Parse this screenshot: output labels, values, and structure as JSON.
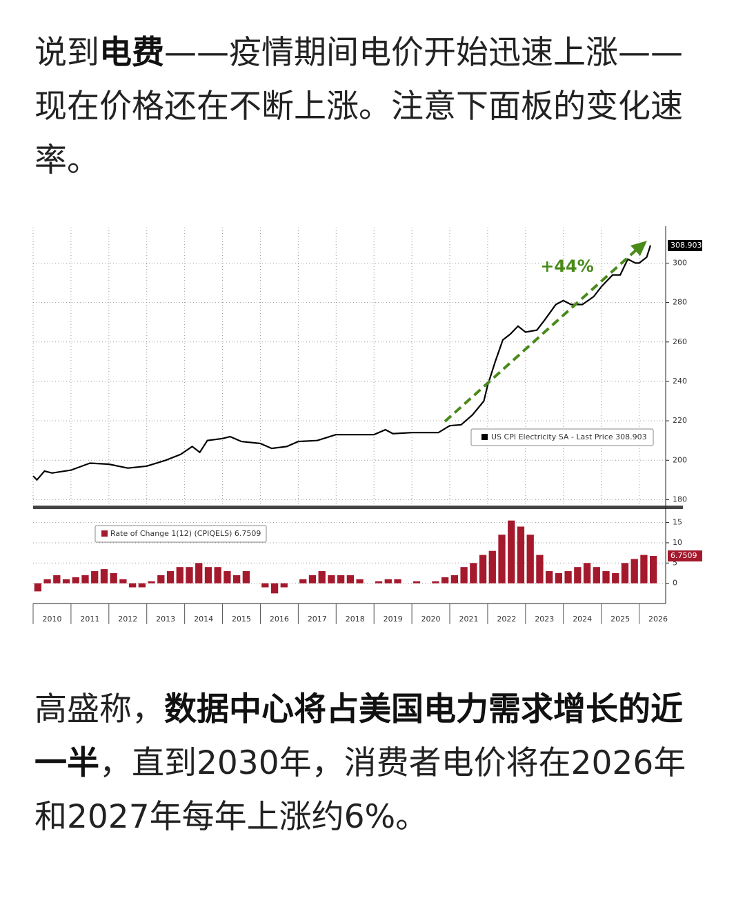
{
  "paragraphs": [
    {
      "runs": [
        {
          "text": "说到"
        },
        {
          "text": "电费",
          "bold": true
        },
        {
          "text": "——疫情期间电价开始迅速上涨——现在价格还在不断上涨。注意下面板的变化速率。"
        }
      ]
    },
    {
      "runs": [
        {
          "text": "高盛称，"
        },
        {
          "text": "数据中心将占美国电力需求增长的近一半",
          "bold": true
        },
        {
          "text": "，直到2030年，消费者电价将在2026年和2027年每年上涨约6%。"
        }
      ]
    }
  ],
  "chart_data": [
    {
      "type": "line",
      "annotation": "+44%",
      "last_value": 308.903,
      "x": [
        2010.0,
        2010.1,
        2010.3,
        2010.5,
        2011.0,
        2011.5,
        2012.0,
        2012.5,
        2013.0,
        2013.5,
        2013.9,
        2014.2,
        2014.4,
        2014.6,
        2015.0,
        2015.2,
        2015.5,
        2016.0,
        2016.3,
        2016.7,
        2017.0,
        2017.5,
        2018.0,
        2018.5,
        2019.0,
        2019.3,
        2019.5,
        2020.0,
        2020.5,
        2020.7,
        2021.0,
        2021.3,
        2021.6,
        2021.9,
        2022.0,
        2022.2,
        2022.4,
        2022.6,
        2022.8,
        2023.0,
        2023.3,
        2023.5,
        2023.8,
        2024.0,
        2024.2,
        2024.5,
        2024.8,
        2025.0,
        2025.3,
        2025.5,
        2025.7,
        2025.9,
        2026.0,
        2026.2,
        2026.3
      ],
      "series": [
        {
          "name": "US CPI Electricity SA - Last Price 308.903",
          "color": "#000000",
          "values": [
            192,
            190,
            194.5,
            193.5,
            195,
            198.5,
            198,
            196,
            197,
            200,
            203,
            207,
            204,
            210,
            211,
            212,
            209.5,
            208.5,
            206,
            207,
            209.5,
            210,
            213,
            213,
            213,
            215.5,
            213.5,
            214,
            214,
            214,
            217.5,
            218,
            223,
            230,
            238,
            250,
            261,
            264,
            268,
            265,
            266,
            271,
            279,
            281,
            279,
            279,
            283,
            288,
            294,
            294,
            302,
            300,
            300,
            303,
            309
          ]
        }
      ],
      "xlim": [
        2010,
        2026.7
      ],
      "xticks": [
        2010,
        2011,
        2012,
        2013,
        2014,
        2015,
        2016,
        2017,
        2018,
        2019,
        2020,
        2021,
        2022,
        2023,
        2024,
        2025,
        2026
      ],
      "ylim": [
        177,
        318
      ],
      "yticks": [
        180,
        200,
        220,
        240,
        260,
        280,
        300
      ],
      "grid": true
    },
    {
      "type": "bar",
      "last_value": 6.7509,
      "x": [
        2010.125,
        2010.375,
        2010.625,
        2010.875,
        2011.125,
        2011.375,
        2011.625,
        2011.875,
        2012.125,
        2012.375,
        2012.625,
        2012.875,
        2013.125,
        2013.375,
        2013.625,
        2013.875,
        2014.125,
        2014.375,
        2014.625,
        2014.875,
        2015.125,
        2015.375,
        2015.625,
        2015.875,
        2016.125,
        2016.375,
        2016.625,
        2016.875,
        2017.125,
        2017.375,
        2017.625,
        2017.875,
        2018.125,
        2018.375,
        2018.625,
        2018.875,
        2019.125,
        2019.375,
        2019.625,
        2019.875,
        2020.125,
        2020.375,
        2020.625,
        2020.875,
        2021.125,
        2021.375,
        2021.625,
        2021.875,
        2022.125,
        2022.375,
        2022.625,
        2022.875,
        2023.125,
        2023.375,
        2023.625,
        2023.875,
        2024.125,
        2024.375,
        2024.625,
        2024.875,
        2025.125,
        2025.375,
        2025.625,
        2025.875,
        2026.125,
        2026.375
      ],
      "series": [
        {
          "name": "Rate of Change 1(12) (CPIQELS) 6.7509",
          "color": "#a5192d",
          "values": [
            -2,
            1,
            2,
            1,
            1.5,
            2,
            3,
            3.5,
            2.5,
            1,
            -1,
            -1,
            0.5,
            2,
            3,
            4,
            4,
            5,
            4,
            4,
            3,
            2,
            3,
            0,
            -1,
            -2.5,
            -1,
            0,
            1,
            2,
            3,
            2,
            2,
            2,
            1,
            0,
            0.5,
            1,
            1,
            0,
            0.5,
            0,
            0.5,
            1.5,
            2,
            4,
            5,
            7,
            8,
            12,
            15.5,
            14,
            12,
            7,
            3,
            2.5,
            3,
            4,
            5,
            4,
            3,
            2.5,
            5,
            6,
            7,
            6.75
          ]
        }
      ],
      "xlim": [
        2010,
        2026.7
      ],
      "xticks": [
        2010,
        2011,
        2012,
        2013,
        2014,
        2015,
        2016,
        2017,
        2018,
        2019,
        2020,
        2021,
        2022,
        2023,
        2024,
        2025,
        2026
      ],
      "ylim": [
        -5,
        18
      ],
      "yticks": [
        0,
        5,
        10,
        15
      ],
      "grid": true
    }
  ]
}
